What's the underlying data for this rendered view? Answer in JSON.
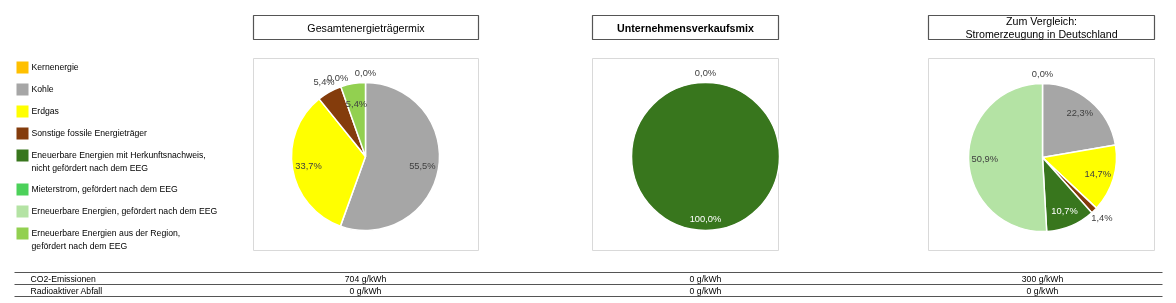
{
  "chart_data": [
    {
      "type": "pie",
      "title": "Gesamtenergieträgermix",
      "legend": "left",
      "categories": [
        "Kernenergie",
        "Kohle",
        "Erdgas",
        "Sonstige fossile Energieträger",
        "Eneuerbare Energien mit Herkunftsnachweis,\nnicht gefördert nach dem EEG",
        "Mieterstrom, gefördert nach dem EEG",
        "Erneuerbare Energien, gefördert nach dem EEG",
        "Erneuerbare Energien aus der Region,\ngefördert nach dem EEG"
      ],
      "colors": [
        "#ffc000",
        "#a6a6a6",
        "#ffff00",
        "#843c0c",
        "#38761d",
        "#4cd15a",
        "#b4e3a4",
        "#92d050"
      ],
      "values": [
        0,
        55.5,
        33.7,
        5.4,
        0,
        0,
        0,
        5.4
      ],
      "value_labels": [
        "0,0%",
        "55,5%",
        "33,7%",
        "5,4%",
        "0,0%",
        null,
        null,
        "5,4%"
      ]
    },
    {
      "type": "pie",
      "title": "Unternehmensverkaufsmix",
      "categories": [
        null,
        null,
        null,
        null,
        null,
        null,
        null,
        null
      ],
      "colors": [
        "#ffc000",
        "#a6a6a6",
        "#ffff00",
        "#843c0c",
        "#38761d",
        "#4cd15a",
        "#b4e3a4",
        "#92d050"
      ],
      "values": [
        0,
        0,
        0,
        0,
        100,
        0,
        0,
        0
      ],
      "value_labels": [
        "0,0%",
        null,
        null,
        null,
        "100,0%",
        null,
        null,
        null
      ]
    },
    {
      "type": "pie",
      "title": "Zum Vergleich:\nStromerzeugung in Deutschland",
      "categories": [
        null,
        null,
        null,
        null,
        null,
        null,
        null,
        null
      ],
      "colors": [
        "#ffc000",
        "#a6a6a6",
        "#ffff00",
        "#843c0c",
        "#38761d",
        "#4cd15a",
        "#b4e3a4",
        "#92d050"
      ],
      "values": [
        0,
        22.3,
        14.7,
        1.4,
        10.7,
        0,
        50.9,
        0
      ],
      "value_labels": [
        "0,0%",
        "22,3%",
        "14,7%",
        "1,4%",
        "10,7%",
        null,
        "50,9%",
        null
      ]
    },
    {
      "type": "other",
      "annotations": [
        "CO2-Emissionen",
        "704 g/kWh",
        "0 g/kWh",
        "300 g/kWh",
        "Radioaktiver Abfall",
        "0 g/kWh",
        "0 g/kWh",
        "0 g/kWh"
      ]
    }
  ]
}
